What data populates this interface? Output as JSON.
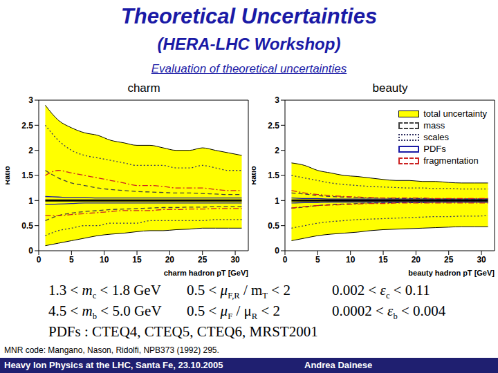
{
  "title": "Theoretical Uncertainties",
  "subtitle": "(HERA-LHC Workshop)",
  "caption": "Evaluation of theoretical uncertainties",
  "chart_data": [
    {
      "type": "band",
      "title": "charm",
      "x_label": "charm hadron pT [GeV]",
      "y_label": "Ratio",
      "x": [
        1,
        3,
        5,
        7,
        9,
        11,
        13,
        15,
        17,
        19,
        21,
        23,
        25,
        27,
        29,
        31
      ],
      "xlim": [
        0,
        32
      ],
      "xticks": [
        0,
        5,
        10,
        15,
        20,
        25,
        30
      ],
      "ylim": [
        0,
        3
      ],
      "yticks": [
        0,
        0.5,
        1,
        1.5,
        2,
        2.5,
        3
      ],
      "central": [
        1,
        1,
        1,
        1,
        1,
        1,
        1,
        1,
        1,
        1,
        1,
        1,
        1,
        1,
        1,
        1
      ],
      "series": [
        {
          "name": "total uncertainty",
          "type": "band",
          "color": "#ffff00",
          "lower": [
            0.1,
            0.15,
            0.2,
            0.25,
            0.3,
            0.33,
            0.35,
            0.38,
            0.4,
            0.4,
            0.42,
            0.43,
            0.45,
            0.45,
            0.45,
            0.45
          ],
          "upper": [
            2.9,
            2.6,
            2.45,
            2.35,
            2.3,
            2.2,
            2.15,
            2.1,
            2.1,
            2.05,
            2.0,
            2.0,
            2.05,
            2.0,
            1.95,
            1.9
          ]
        },
        {
          "name": "mass",
          "type": "line",
          "color": "#404040",
          "line_style": "dashed",
          "lower": [
            0.6,
            0.7,
            0.75,
            0.78,
            0.8,
            0.82,
            0.83,
            0.84,
            0.85,
            0.86,
            0.86,
            0.87,
            0.87,
            0.88,
            0.88,
            0.88
          ],
          "upper": [
            1.6,
            1.45,
            1.35,
            1.3,
            1.25,
            1.22,
            1.2,
            1.18,
            1.17,
            1.16,
            1.15,
            1.15,
            1.14,
            1.13,
            1.12,
            1.12
          ]
        },
        {
          "name": "scales",
          "type": "line",
          "color": "#303060",
          "line_style": "dotted",
          "lower": [
            0.3,
            0.4,
            0.45,
            0.5,
            0.5,
            0.55,
            0.55,
            0.55,
            0.6,
            0.6,
            0.6,
            0.6,
            0.6,
            0.62,
            0.62,
            0.62
          ],
          "upper": [
            2.5,
            2.2,
            2.0,
            1.9,
            1.85,
            1.8,
            1.75,
            1.7,
            1.7,
            1.7,
            1.65,
            1.65,
            1.7,
            1.65,
            1.6,
            1.6
          ]
        },
        {
          "name": "PDFs",
          "type": "line",
          "color": "#1a1aa6",
          "line_style": "solid",
          "lower": [
            0.92,
            0.93,
            0.94,
            0.95,
            0.95,
            0.95,
            0.95,
            0.95,
            0.95,
            0.95,
            0.95,
            0.95,
            0.95,
            0.95,
            0.95,
            0.95
          ],
          "upper": [
            1.08,
            1.07,
            1.06,
            1.06,
            1.05,
            1.05,
            1.05,
            1.05,
            1.05,
            1.05,
            1.05,
            1.05,
            1.05,
            1.05,
            1.05,
            1.05
          ]
        },
        {
          "name": "fragmentation",
          "type": "line",
          "color": "#cc2222",
          "line_style": "dashdot",
          "lower": [
            0.7,
            0.7,
            0.72,
            0.74,
            0.76,
            0.78,
            0.8,
            0.8,
            0.8,
            0.82,
            0.82,
            0.83,
            0.83,
            0.84,
            0.84,
            0.84
          ],
          "upper": [
            1.5,
            1.6,
            1.55,
            1.5,
            1.45,
            1.4,
            1.35,
            1.3,
            1.3,
            1.28,
            1.25,
            1.25,
            1.25,
            1.22,
            1.2,
            1.2
          ]
        }
      ]
    },
    {
      "type": "band",
      "title": "beauty",
      "x_label": "beauty hadron pT [GeV]",
      "y_label": "Ratio",
      "legend": "upper right",
      "x": [
        1,
        3,
        5,
        7,
        9,
        11,
        13,
        15,
        17,
        19,
        21,
        23,
        25,
        27,
        29,
        31
      ],
      "xlim": [
        0,
        32
      ],
      "xticks": [
        0,
        5,
        10,
        15,
        20,
        25,
        30
      ],
      "ylim": [
        0,
        3
      ],
      "yticks": [
        0,
        0.5,
        1,
        1.5,
        2,
        2.5,
        3
      ],
      "central": [
        1,
        1,
        1,
        1,
        1,
        1,
        1,
        1,
        1,
        1,
        1,
        1,
        1,
        1,
        1,
        1
      ],
      "series": [
        {
          "name": "total uncertainty",
          "type": "band",
          "color": "#ffff00",
          "lower": [
            0.2,
            0.25,
            0.3,
            0.33,
            0.35,
            0.37,
            0.4,
            0.42,
            0.43,
            0.44,
            0.45,
            0.46,
            0.47,
            0.48,
            0.48,
            0.48
          ],
          "upper": [
            1.75,
            1.7,
            1.6,
            1.55,
            1.5,
            1.48,
            1.45,
            1.42,
            1.4,
            1.4,
            1.38,
            1.38,
            1.36,
            1.35,
            1.35,
            1.35
          ]
        },
        {
          "name": "mass",
          "type": "line",
          "color": "#404040",
          "line_style": "dashed",
          "lower": [
            0.85,
            0.87,
            0.9,
            0.92,
            0.93,
            0.94,
            0.95,
            0.95,
            0.96,
            0.96,
            0.96,
            0.97,
            0.97,
            0.97,
            0.97,
            0.97
          ],
          "upper": [
            1.15,
            1.13,
            1.1,
            1.08,
            1.07,
            1.06,
            1.05,
            1.05,
            1.04,
            1.04,
            1.04,
            1.03,
            1.03,
            1.03,
            1.03,
            1.03
          ]
        },
        {
          "name": "scales",
          "type": "line",
          "color": "#303060",
          "line_style": "dotted",
          "lower": [
            0.45,
            0.5,
            0.55,
            0.58,
            0.6,
            0.62,
            0.63,
            0.64,
            0.65,
            0.66,
            0.67,
            0.68,
            0.68,
            0.69,
            0.69,
            0.7
          ],
          "upper": [
            1.5,
            1.45,
            1.4,
            1.35,
            1.32,
            1.3,
            1.28,
            1.27,
            1.26,
            1.25,
            1.25,
            1.24,
            1.24,
            1.23,
            1.23,
            1.23
          ]
        },
        {
          "name": "PDFs",
          "type": "line",
          "color": "#1a1aa6",
          "line_style": "solid",
          "lower": [
            0.95,
            0.96,
            0.96,
            0.97,
            0.97,
            0.97,
            0.97,
            0.97,
            0.97,
            0.97,
            0.97,
            0.97,
            0.97,
            0.97,
            0.97,
            0.97
          ],
          "upper": [
            1.05,
            1.04,
            1.04,
            1.03,
            1.03,
            1.03,
            1.03,
            1.03,
            1.03,
            1.03,
            1.03,
            1.03,
            1.03,
            1.03,
            1.03,
            1.03
          ]
        },
        {
          "name": "fragmentation",
          "type": "line",
          "color": "#cc2222",
          "line_style": "dashdot",
          "lower": [
            0.85,
            0.88,
            0.9,
            0.91,
            0.92,
            0.93,
            0.94,
            0.94,
            0.95,
            0.95,
            0.95,
            0.95,
            0.95,
            0.95,
            0.95,
            0.95
          ],
          "upper": [
            1.2,
            1.15,
            1.12,
            1.1,
            1.08,
            1.07,
            1.06,
            1.05,
            1.05,
            1.05,
            1.05,
            1.04,
            1.04,
            1.04,
            1.04,
            1.04
          ]
        }
      ]
    }
  ],
  "formulas": [
    [
      {
        "pre": "1.3 < ",
        "sym": "m",
        "sub": "c",
        "post": " < 1.8 GeV"
      },
      {
        "pre": "0.5 < ",
        "sym": "μ",
        "sub": "F,R",
        "post": " / m",
        "sub2": "T",
        "post2": " < 2"
      },
      {
        "pre": "0.002 < ",
        "sym": "ε",
        "sub": "c",
        "post": " < 0.11"
      }
    ],
    [
      {
        "pre": "4.5 < ",
        "sym": "m",
        "sub": "b",
        "post": " < 5.0 GeV"
      },
      {
        "pre": "0.5 < ",
        "sym": "μ",
        "sub": "F",
        "post": " / μ",
        "sub2": "R",
        "post2": " < 2"
      },
      {
        "pre": "0.0002 < ",
        "sym": "ε",
        "sub": "b",
        "post": " < 0.004"
      }
    ]
  ],
  "pdfs": "PDFs : CTEQ4, CTEQ5, CTEQ6, MRST2001",
  "reference": "MNR code: Mangano, Nason, Ridolfi, NPB373 (1992) 295.",
  "footer": {
    "left": "Heavy Ion Physics at the LHC, Santa Fe, 23.10.2005",
    "right": "Andrea Dainese"
  }
}
